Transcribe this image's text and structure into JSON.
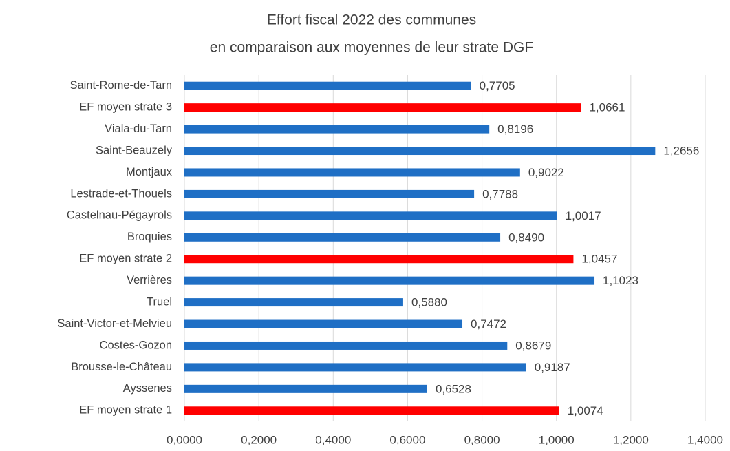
{
  "chart_data": {
    "type": "bar",
    "orientation": "horizontal",
    "title": [
      "Effort fiscal 2022 des communes",
      "en comparaison aux moyennes de leur strate DGF"
    ],
    "categories": [
      "Saint-Rome-de-Tarn",
      "EF moyen strate 3",
      "Viala-du-Tarn",
      "Saint-Beauzely",
      "Montjaux",
      "Lestrade-et-Thouels",
      "Castelnau-Pégayrols",
      "Broquies",
      "EF moyen strate 2",
      "Verrières",
      "Truel",
      "Saint-Victor-et-Melvieu",
      "Costes-Gozon",
      "Brousse-le-Château",
      "Ayssenes",
      "EF moyen strate 1"
    ],
    "values": [
      0.7705,
      1.0661,
      0.8196,
      1.2656,
      0.9022,
      0.7788,
      1.0017,
      0.849,
      1.0457,
      1.1023,
      0.588,
      0.7472,
      0.8679,
      0.9187,
      0.6528,
      1.0074
    ],
    "value_labels": [
      "0,7705",
      "1,0661",
      "0,8196",
      "1,2656",
      "0,9022",
      "0,7788",
      "1,0017",
      "0,8490",
      "1,0457",
      "1,1023",
      "0,5880",
      "0,7472",
      "0,8679",
      "0,9187",
      "0,6528",
      "1,0074"
    ],
    "colors": [
      "#1f6fc5",
      "#ff0000",
      "#1f6fc5",
      "#1f6fc5",
      "#1f6fc5",
      "#1f6fc5",
      "#1f6fc5",
      "#1f6fc5",
      "#ff0000",
      "#1f6fc5",
      "#1f6fc5",
      "#1f6fc5",
      "#1f6fc5",
      "#1f6fc5",
      "#1f6fc5",
      "#ff0000"
    ],
    "xlim": [
      0,
      1.4
    ],
    "xticks": [
      {
        "value": 0,
        "label": "0,0000"
      },
      {
        "value": 0.2,
        "label": "0,2000"
      },
      {
        "value": 0.4,
        "label": "0,4000"
      },
      {
        "value": 0.6,
        "label": "0,6000"
      },
      {
        "value": 0.8,
        "label": "0,8000"
      },
      {
        "value": 1.0,
        "label": "1,0000"
      },
      {
        "value": 1.2,
        "label": "1,2000"
      },
      {
        "value": 1.4,
        "label": "1,4000"
      }
    ],
    "grid": true
  }
}
